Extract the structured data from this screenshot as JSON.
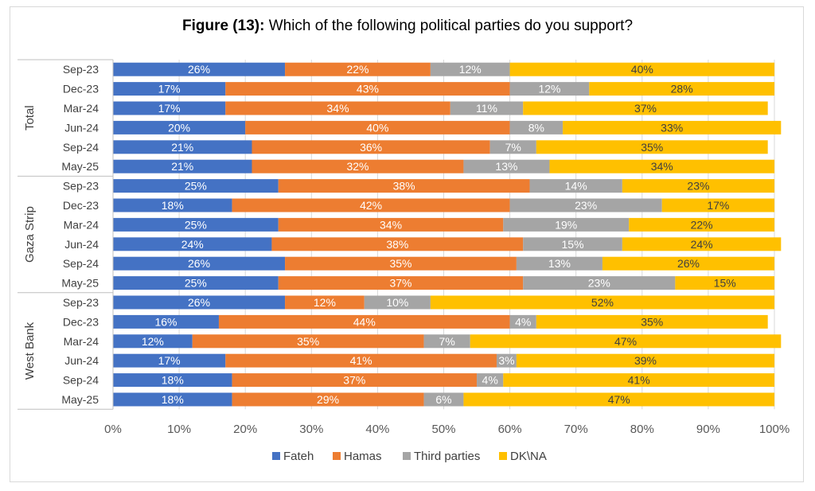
{
  "chart_data": {
    "type": "bar",
    "orientation": "horizontal",
    "stacked": "percent",
    "title_bold": "Figure (13):",
    "title_rest": " Which of the following political parties do you support?",
    "groups": [
      {
        "name": "Total",
        "categories": [
          "Sep-23",
          "Dec-23",
          "Mar-24",
          "Jun-24",
          "Sep-24",
          "May-25"
        ]
      },
      {
        "name": "Gaza Strip",
        "categories": [
          "Sep-23",
          "Dec-23",
          "Mar-24",
          "Jun-24",
          "Sep-24",
          "May-25"
        ]
      },
      {
        "name": "West Bank",
        "categories": [
          "Sep-23",
          "Dec-23",
          "Mar-24",
          "Jun-24",
          "Sep-24",
          "May-25"
        ]
      }
    ],
    "series": [
      {
        "name": "Fateh",
        "color": "#4472C4",
        "values": [
          26,
          17,
          17,
          20,
          21,
          21,
          25,
          18,
          25,
          24,
          26,
          25,
          26,
          16,
          12,
          17,
          18,
          18
        ],
        "labels": [
          "26%",
          "17%",
          "17%",
          "20%",
          "21%",
          "21%",
          "25%",
          "18%",
          "25%",
          "24%",
          "26%",
          "25%",
          "26%",
          "16%",
          "12%",
          "17%",
          "18%",
          "18%"
        ]
      },
      {
        "name": "Hamas",
        "color": "#ED7D31",
        "values": [
          22,
          43,
          34,
          40,
          36,
          32,
          38,
          42,
          34,
          38,
          35,
          37,
          12,
          44,
          35,
          41,
          37,
          29
        ],
        "labels": [
          "22%",
          "43%",
          "34%",
          "40%",
          "36%",
          "32%",
          "38%",
          "42%",
          "34%",
          "38%",
          "35%",
          "37%",
          "12%",
          "44%",
          "35%",
          "41%",
          "37%",
          "29%"
        ]
      },
      {
        "name": "Third parties",
        "color": "#A5A5A5",
        "values": [
          12,
          12,
          11,
          8,
          7,
          13,
          14,
          23,
          19,
          15,
          13,
          23,
          10,
          4,
          7,
          3,
          4,
          6
        ],
        "labels": [
          "12%",
          "12%",
          "11%",
          "8%",
          "7%",
          "13%",
          "14%",
          "23%",
          "19%",
          "15%",
          "13%",
          "23%",
          "10%",
          "4%",
          "7%",
          "3%",
          "4%",
          "6%"
        ]
      },
      {
        "name": "DK\\NA",
        "color": "#FFC000",
        "values": [
          40,
          28,
          37,
          33,
          35,
          34,
          23,
          17,
          22,
          24,
          26,
          15,
          52,
          35,
          47,
          39,
          41,
          47
        ],
        "labels": [
          "40%",
          "28%",
          "37%",
          "33%",
          "35%",
          "34%",
          "23%",
          "17%",
          "22%",
          "24%",
          "26%",
          "15%",
          "52%",
          "35%",
          "47%",
          "39%",
          "41%",
          "47%"
        ]
      }
    ],
    "xaxis_ticks": [
      "0%",
      "10%",
      "20%",
      "30%",
      "40%",
      "50%",
      "60%",
      "70%",
      "80%",
      "90%",
      "100%"
    ],
    "xlim": [
      0,
      100
    ],
    "legend_position": "bottom",
    "grid": true
  }
}
